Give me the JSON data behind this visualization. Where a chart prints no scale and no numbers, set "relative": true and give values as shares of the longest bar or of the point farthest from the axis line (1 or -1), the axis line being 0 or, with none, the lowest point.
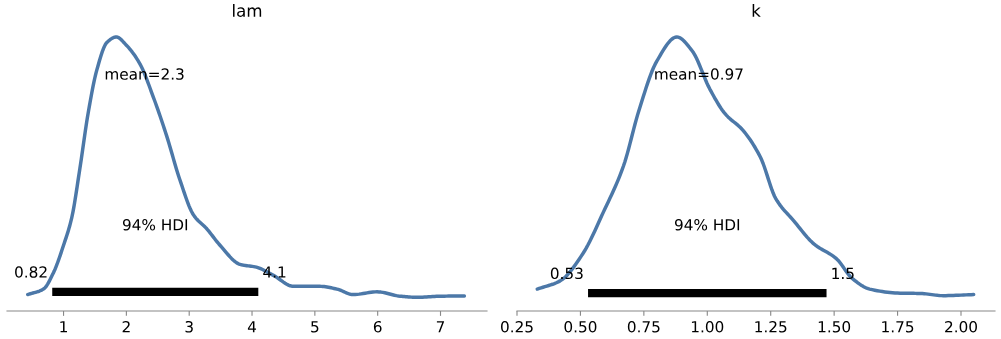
{
  "chart_data": [
    {
      "type": "line",
      "title": "lam",
      "relative": true,
      "xlim": [
        0.1,
        7.74
      ],
      "xticks": [
        1,
        2,
        3,
        4,
        5,
        6,
        7
      ],
      "tick_labels": "x",
      "series": [
        {
          "color": "#4c78a8",
          "x": [
            0.43,
            0.68,
            0.84,
            1.0,
            1.13,
            1.26,
            1.39,
            1.53,
            1.69,
            1.84,
            2.0,
            2.22,
            2.43,
            2.64,
            2.85,
            3.07,
            3.28,
            3.49,
            3.81,
            4.07,
            4.34,
            4.66,
            5.08,
            5.35,
            5.61,
            5.99,
            6.36,
            6.62,
            7.0,
            7.38
          ],
          "values": [
            0.06,
            0.08,
            0.14,
            0.24,
            0.34,
            0.52,
            0.72,
            0.88,
            0.98,
            1.0,
            0.97,
            0.9,
            0.78,
            0.64,
            0.48,
            0.35,
            0.3,
            0.24,
            0.17,
            0.16,
            0.13,
            0.09,
            0.09,
            0.08,
            0.06,
            0.07,
            0.054,
            0.05,
            0.054,
            0.055
          ]
        },
        {
          "color": "#000000",
          "x": [
            0.82,
            4.1
          ],
          "values": [
            0.07,
            0.07
          ]
        }
      ],
      "annotations": [
        {
          "text": "mean=2.3",
          "x": 2.29,
          "y": 0.86
        },
        "94% HDI",
        {
          "text": "0.82",
          "x": 0.82,
          "y": 0.07
        },
        {
          "text": "4.1",
          "x": 4.1,
          "y": 0.07
        }
      ]
    },
    {
      "type": "line",
      "title": "k",
      "relative": true,
      "xlim": [
        0.25,
        2.134
      ],
      "xticks": [
        {
          "value": 0.25,
          "label": "0.25"
        },
        {
          "value": 0.5,
          "label": "0.50"
        },
        {
          "value": 0.75,
          "label": "0.75"
        },
        {
          "value": 1.0,
          "label": "1.00"
        },
        {
          "value": 1.25,
          "label": "1.25"
        },
        {
          "value": 1.5,
          "label": "1.50"
        },
        {
          "value": 1.75,
          "label": "1.75"
        },
        {
          "value": 2.0,
          "label": "2.00"
        }
      ],
      "tick_labels": "x",
      "series": [
        {
          "color": "#4c78a8",
          "x": [
            0.33,
            0.42,
            0.51,
            0.59,
            0.67,
            0.73,
            0.8,
            0.88,
            0.94,
            1.01,
            1.07,
            1.14,
            1.21,
            1.27,
            1.34,
            1.42,
            1.51,
            1.57,
            1.64,
            1.76,
            1.84,
            1.93,
            2.05
          ],
          "values": [
            0.08,
            0.11,
            0.21,
            0.36,
            0.53,
            0.73,
            0.91,
            1.0,
            0.95,
            0.81,
            0.72,
            0.66,
            0.56,
            0.41,
            0.33,
            0.245,
            0.19,
            0.12,
            0.08,
            0.065,
            0.064,
            0.056,
            0.06
          ]
        },
        {
          "color": "#000000",
          "x": [
            0.53,
            1.47
          ],
          "values": [
            0.065,
            0.065
          ]
        }
      ],
      "annotations": [
        {
          "text": "mean=0.97",
          "x": 0.967,
          "y": 0.86
        },
        "94% HDI",
        {
          "text": "0.53",
          "x": 0.53,
          "y": 0.065
        },
        {
          "text": "1.5",
          "x": 1.47,
          "y": 0.065
        }
      ]
    }
  ]
}
